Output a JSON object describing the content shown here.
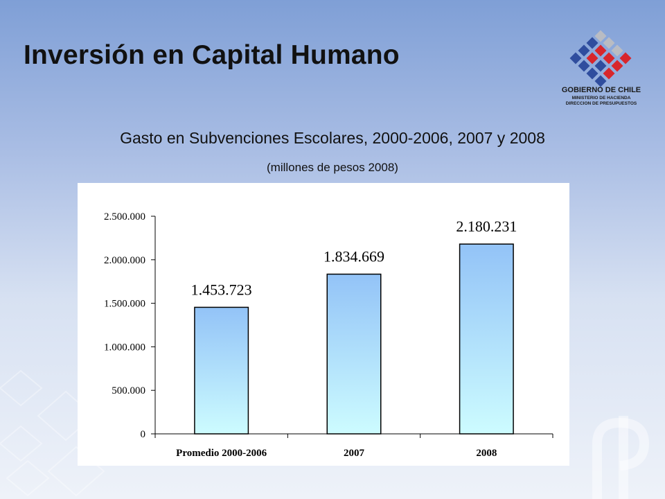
{
  "header": {
    "title": "Inversión en Capital Humano"
  },
  "logo": {
    "name": "GOBIERNO DE CHILE",
    "line1": "MINISTERIO DE HACIENDA",
    "line2": "DIRECCION DE PRESUPUESTOS",
    "colors": [
      "#2f4d9e",
      "#d8262c",
      "#b9bcc3"
    ]
  },
  "chart_data": {
    "type": "bar",
    "title": "Gasto en Subvenciones Escolares, 2000-2006, 2007 y 2008",
    "subtitle": "(millones de pesos 2008)",
    "categories": [
      "Promedio 2000-2006",
      "2007",
      "2008"
    ],
    "values": [
      1453723,
      1834669,
      2180231
    ],
    "data_labels": [
      "1.453.723",
      "1.834.669",
      "2.180.231"
    ],
    "ylim": [
      0,
      2500000
    ],
    "yticks": [
      0,
      500000,
      1000000,
      1500000,
      2000000,
      2500000
    ],
    "ytick_labels": [
      "0",
      "500.000",
      "1.000.000",
      "1.500.000",
      "2.000.000",
      "2.500.000"
    ],
    "grid": false,
    "bar_color_top": "#93c3f7",
    "bar_color_bottom": "#cdfcff"
  }
}
